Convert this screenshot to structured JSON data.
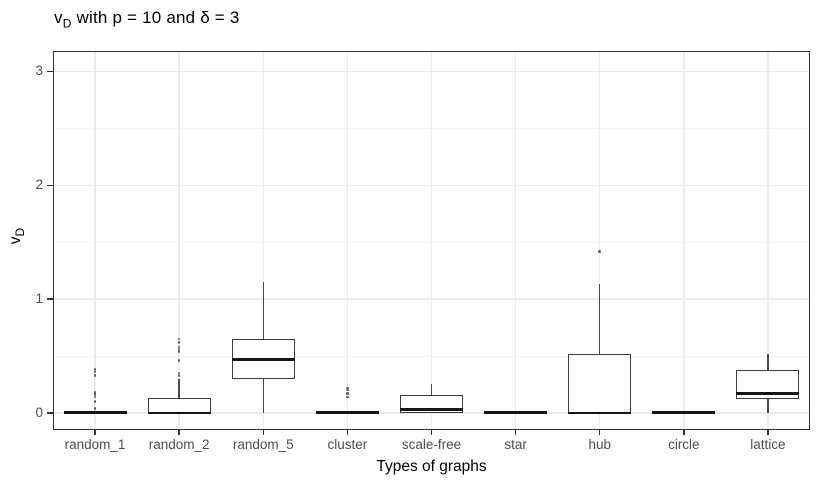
{
  "title": {
    "prefix": "v",
    "subscript": "D",
    "suffix": " with p = 10 and δ = 3"
  },
  "y_axis": {
    "label_prefix": "v",
    "label_subscript": "D"
  },
  "x_axis": {
    "label": "Types of graphs"
  },
  "chart_data": {
    "type": "boxplot",
    "title": "v_D with p = 10 and δ = 3",
    "xlabel": "Types of graphs",
    "ylabel": "v_D",
    "categories": [
      "random_1",
      "random_2",
      "random_5",
      "cluster",
      "scale-free",
      "star",
      "hub",
      "circle",
      "lattice"
    ],
    "y_ticks": [
      0,
      1,
      2,
      3
    ],
    "y_minor_ticks": [
      0.5,
      1.5,
      2.5
    ],
    "ylim": [
      -0.15,
      3.18
    ],
    "grid": true,
    "legend": "none",
    "series": [
      {
        "name": "random_1",
        "low": 0,
        "q1": 0,
        "median": 0,
        "q3": 0,
        "high": 0,
        "outliers": [
          0.04,
          0.1,
          0.14,
          0.16,
          0.18,
          0.33,
          0.36,
          0.38
        ]
      },
      {
        "name": "random_2",
        "low": 0,
        "q1": 0,
        "median": 0,
        "q3": 0.13,
        "high": 0.3,
        "outliers": [
          0.33,
          0.35,
          0.46,
          0.54,
          0.56,
          0.58,
          0.62,
          0.65
        ]
      },
      {
        "name": "random_5",
        "low": 0,
        "q1": 0.3,
        "median": 0.47,
        "q3": 0.65,
        "high": 1.15,
        "outliers": []
      },
      {
        "name": "cluster",
        "low": 0,
        "q1": 0,
        "median": 0,
        "q3": 0,
        "high": 0,
        "outliers": [
          0.14,
          0.17,
          0.2,
          0.22
        ]
      },
      {
        "name": "scale-free",
        "low": 0,
        "q1": 0,
        "median": 0.03,
        "q3": 0.16,
        "high": 0.25,
        "outliers": []
      },
      {
        "name": "star",
        "low": 0,
        "q1": 0,
        "median": 0,
        "q3": 0,
        "high": 0,
        "outliers": []
      },
      {
        "name": "hub",
        "low": 0,
        "q1": 0,
        "median": 0,
        "q3": 0.52,
        "high": 1.13,
        "outliers": [
          1.42
        ]
      },
      {
        "name": "circle",
        "low": 0,
        "q1": 0,
        "median": 0,
        "q3": 0,
        "high": 0,
        "outliers": []
      },
      {
        "name": "lattice",
        "low": 0,
        "q1": 0.12,
        "median": 0.17,
        "q3": 0.38,
        "high": 0.52,
        "outliers": []
      }
    ],
    "colors": {
      "box_stroke": "#3c3c3c",
      "box_fill": "#ffffff",
      "median": "#151515",
      "grid_major": "#ebebeb",
      "grid_minor": "#f4f4f4",
      "panel_border": "#333333",
      "tick_label": "#4d4d4d",
      "text": "#000000"
    }
  }
}
